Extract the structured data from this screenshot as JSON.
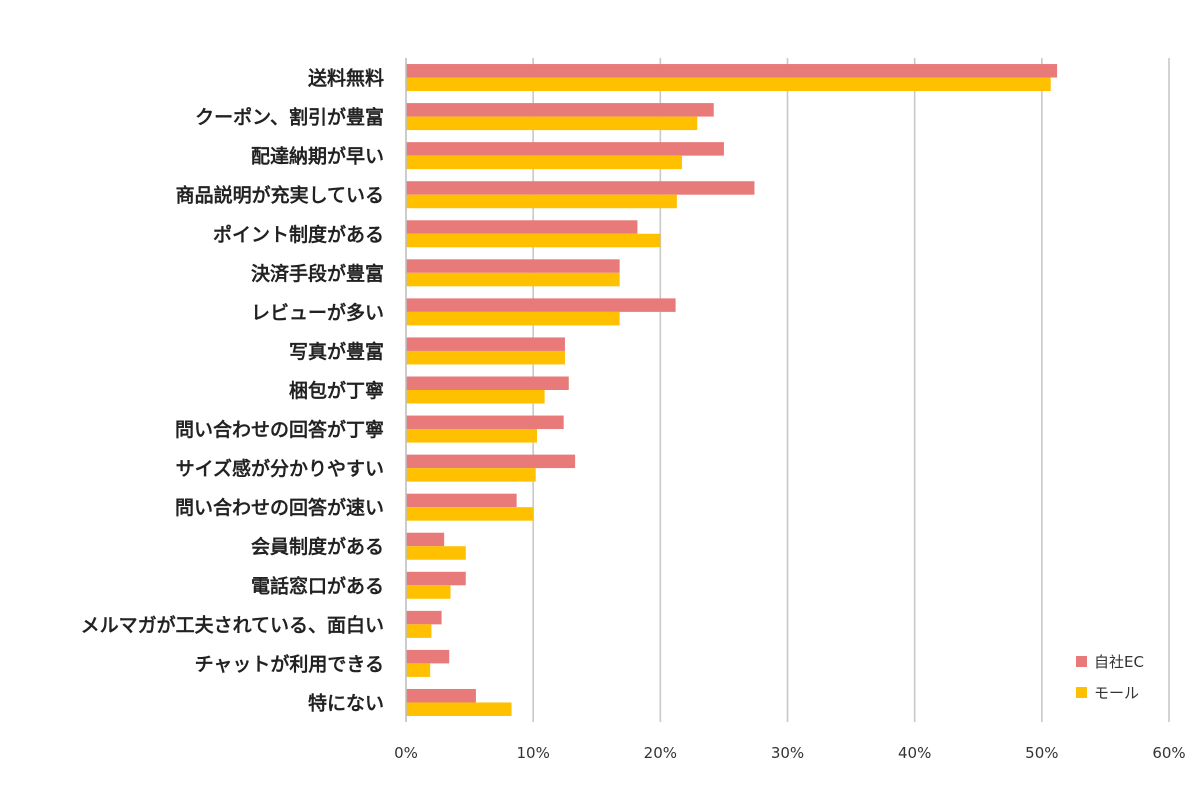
{
  "chart_data": {
    "type": "bar",
    "orientation": "horizontal",
    "categories": [
      "送料無料",
      "クーポン、割引が豊富",
      "配達納期が早い",
      "商品説明が充実している",
      "ポイント制度がある",
      "決済手段が豊富",
      "レビューが多い",
      "写真が豊富",
      "梱包が丁寧",
      "問い合わせの回答が丁寧",
      "サイズ感が分かりやすい",
      "問い合わせの回答が速い",
      "会員制度がある",
      "電話窓口がある",
      "メルマガが工夫されている、面白い",
      "チャットが利用できる",
      "特にない"
    ],
    "series": [
      {
        "name": "自社EC",
        "color": "#e87a7a",
        "values": [
          51.2,
          24.2,
          25.0,
          27.4,
          18.2,
          16.8,
          21.2,
          12.5,
          12.8,
          12.4,
          13.3,
          8.7,
          3.0,
          4.7,
          2.8,
          3.4,
          5.5
        ]
      },
      {
        "name": "モール",
        "color": "#ffc000",
        "values": [
          50.7,
          22.9,
          21.7,
          21.3,
          20.0,
          16.8,
          16.8,
          12.5,
          10.9,
          10.3,
          10.2,
          10.0,
          4.7,
          3.5,
          2.0,
          1.9,
          8.3
        ]
      }
    ],
    "xlim": [
      0,
      60
    ],
    "xticks": [
      "0%",
      "10%",
      "20%",
      "30%",
      "40%",
      "50%",
      "60%"
    ],
    "grid": true,
    "legend": "bottom-right"
  }
}
